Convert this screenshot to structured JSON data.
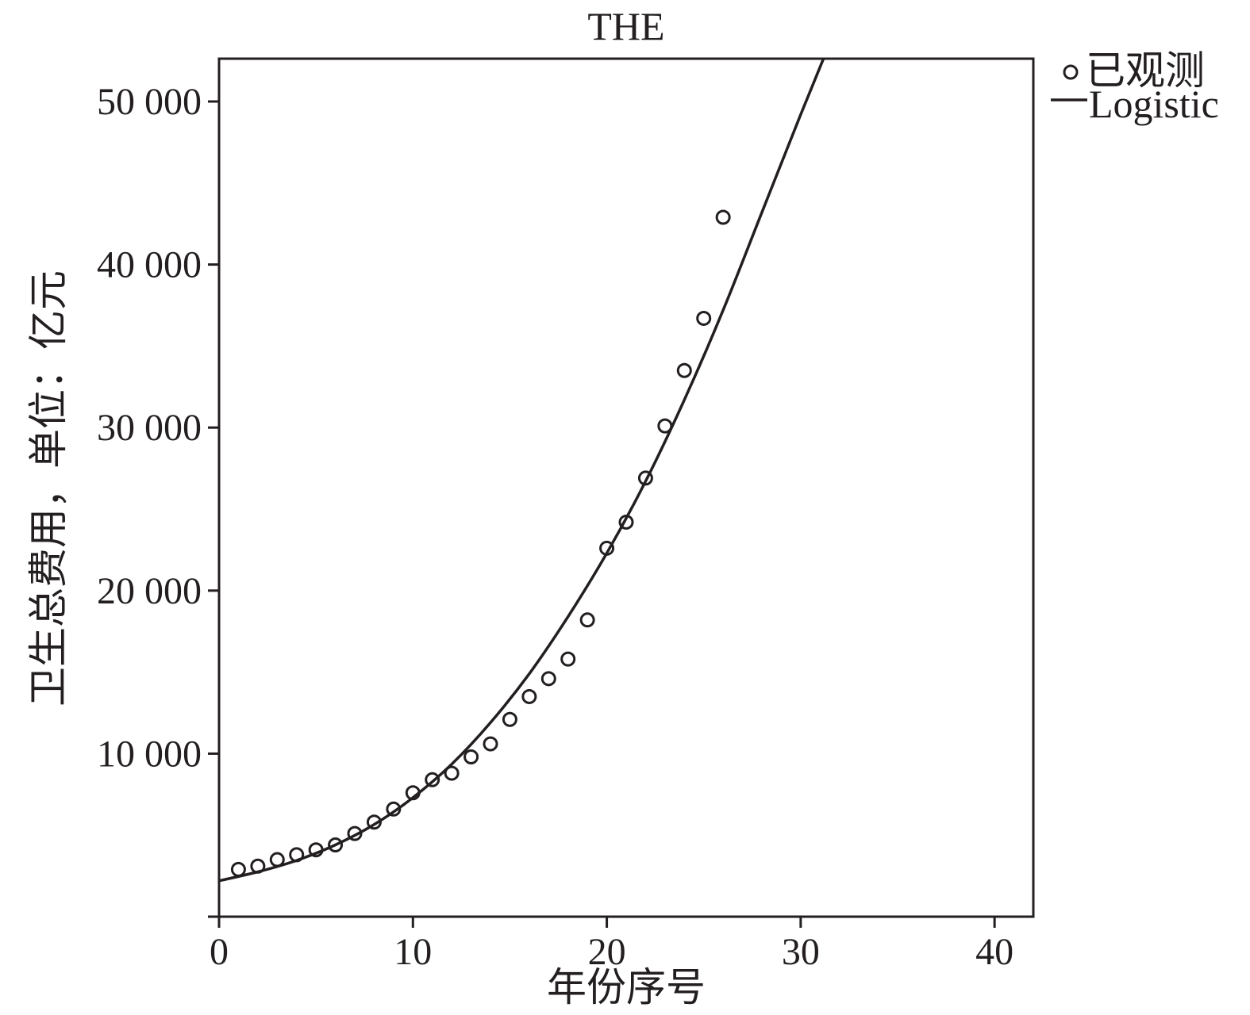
{
  "chart_data": {
    "type": "scatter",
    "title": "THE",
    "xlabel": "年份序号",
    "ylabel": "卫生总费用，单位：亿元",
    "xlim": [
      0,
      42
    ],
    "ylim": [
      0,
      50000
    ],
    "x_ticks": [
      0,
      10,
      20,
      30,
      40
    ],
    "x_tick_labels": [
      "0",
      "10",
      "20",
      "30",
      "40"
    ],
    "y_ticks": [
      10000,
      20000,
      30000,
      40000,
      50000
    ],
    "y_tick_labels": [
      "10 000",
      "20 000",
      "30 000",
      "40 000",
      "50 000"
    ],
    "grid": false,
    "legend": {
      "position": "top-right-outside",
      "entries": [
        {
          "label": "已观测",
          "marker": "circle"
        },
        {
          "label": "Logistic",
          "marker": "line"
        }
      ]
    },
    "series": [
      {
        "name": "已观测",
        "kind": "scatter",
        "x": [
          1,
          2,
          3,
          4,
          5,
          6,
          7,
          8,
          9,
          10,
          11,
          12,
          13,
          14,
          15,
          16,
          17,
          18,
          19,
          20,
          21,
          22,
          23,
          24,
          25,
          26
        ],
        "y": [
          2900,
          3100,
          3500,
          3800,
          4100,
          4400,
          5100,
          5800,
          6600,
          7600,
          8400,
          8800,
          9800,
          10600,
          12100,
          13500,
          14600,
          15800,
          18200,
          22600,
          24200,
          26900,
          30100,
          33500,
          36700,
          42900
        ]
      },
      {
        "name": "Logistic",
        "kind": "line",
        "x": [
          0,
          2,
          4,
          6,
          8,
          10,
          12,
          14,
          16,
          18,
          20,
          22,
          24,
          26,
          28,
          30,
          31.2
        ],
        "y": [
          2200,
          2750,
          3450,
          4400,
          5650,
          7300,
          9350,
          11900,
          14900,
          18400,
          22300,
          26700,
          31700,
          37200,
          43200,
          49200,
          52700
        ]
      }
    ]
  }
}
